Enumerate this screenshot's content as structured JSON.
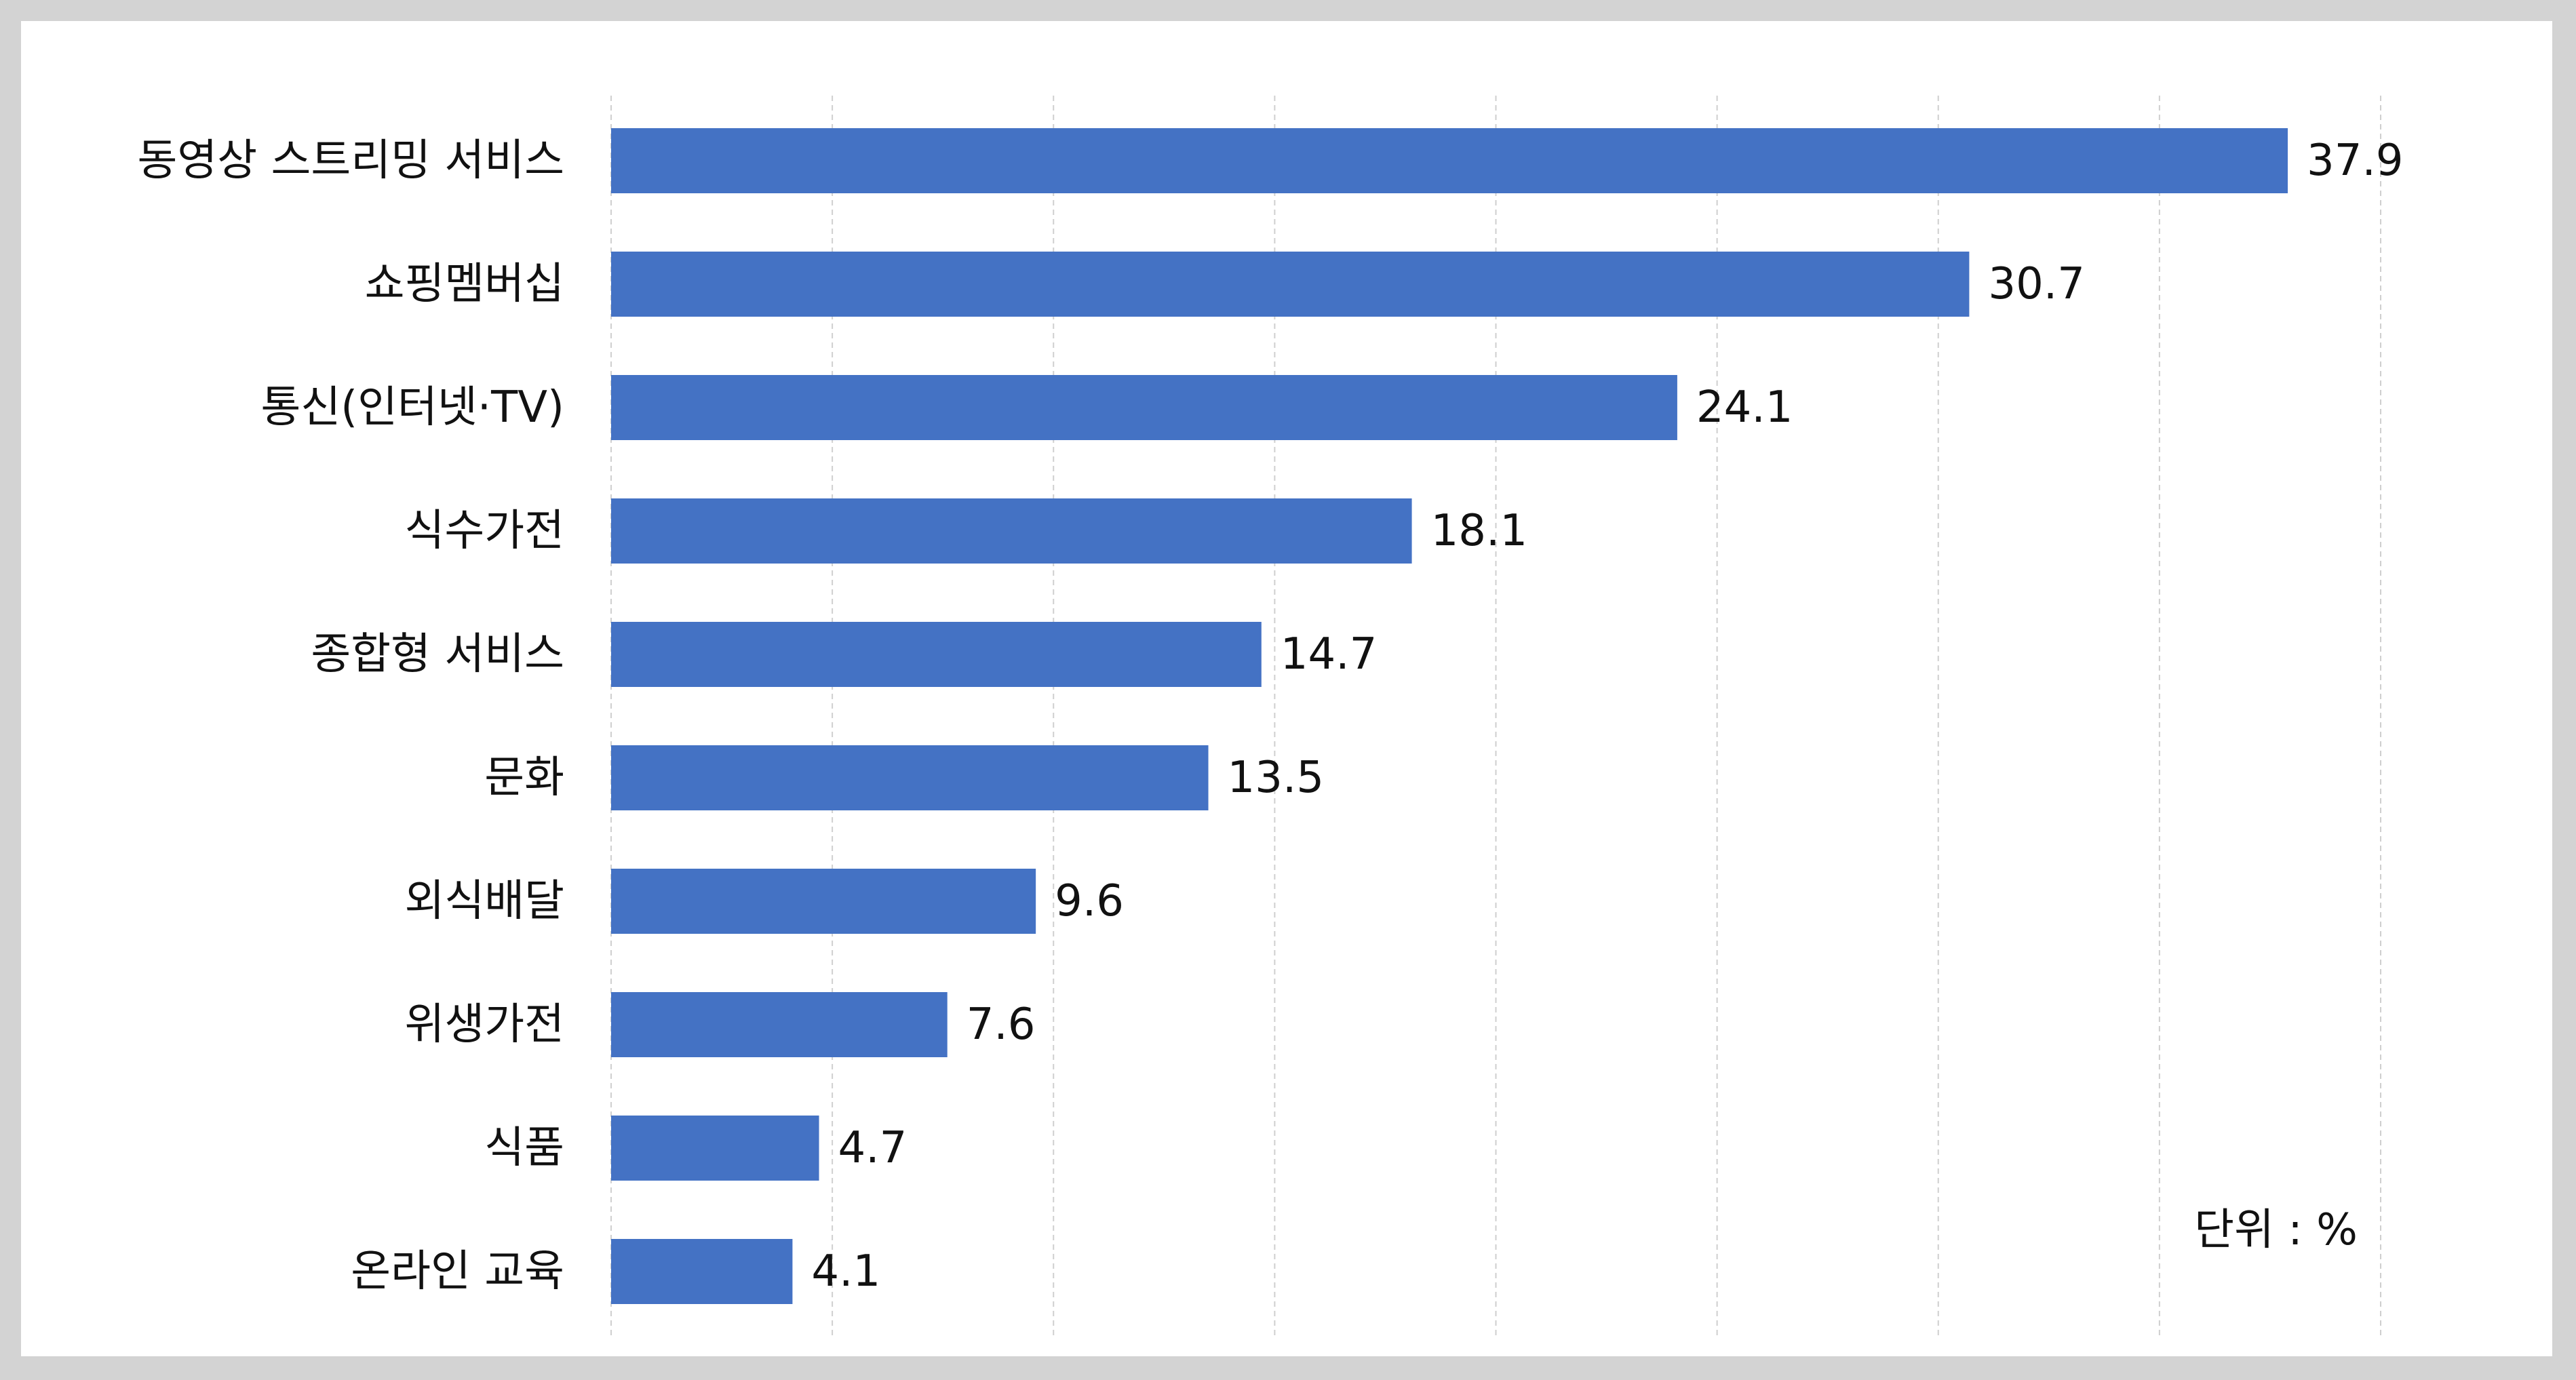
{
  "chart_data": {
    "type": "bar",
    "orientation": "horizontal",
    "categories": [
      "동영상 스트리밍 서비스",
      "쇼핑멤버십",
      "통신(인터넷·TV)",
      "식수가전",
      "종합형 서비스",
      "문화",
      "외식배달",
      "위생가전",
      "식품",
      "온라인 교육"
    ],
    "values": [
      37.9,
      30.7,
      24.1,
      18.1,
      14.7,
      13.5,
      9.6,
      7.6,
      4.7,
      4.1
    ],
    "value_labels": [
      "37.9",
      "30.7",
      "24.1",
      "18.1",
      "14.7",
      "13.5",
      "9.6",
      "7.6",
      "4.7",
      "4.1"
    ],
    "unit_note": "단위 : %",
    "xlim": [
      0,
      40
    ],
    "gridlines": "dashed vertical, every 5",
    "bar_color": "#4472c4",
    "title": "",
    "xlabel": "",
    "ylabel": ""
  }
}
